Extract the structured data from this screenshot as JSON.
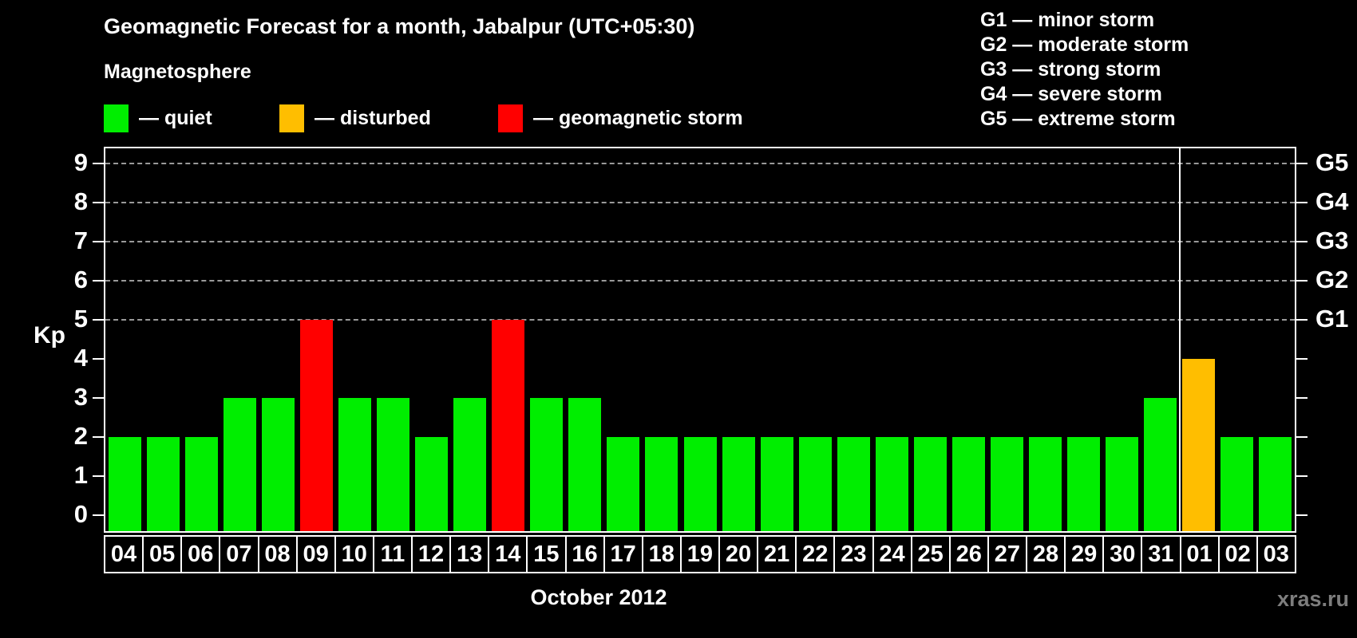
{
  "title": "Geomagnetic Forecast for a month, Jabalpur (UTC+05:30)",
  "subtitle": "Magnetosphere",
  "legend": {
    "quiet": "— quiet",
    "disturbed": "— disturbed",
    "storm": "— geomagnetic storm"
  },
  "g_legend": [
    "G1 — minor storm",
    "G2 — moderate storm",
    "G3 — strong storm",
    "G4 — severe storm",
    "G5 — extreme storm"
  ],
  "y_axis_title": "Kp",
  "x_axis_title": "October 2012",
  "watermark": "xras.ru",
  "colors": {
    "quiet": "#00ee00",
    "disturbed": "#ffbe00",
    "storm": "#ff0000",
    "gridline": "#9a9a9a",
    "axis": "#ffffff",
    "background": "#000000",
    "watermark": "#7d7d7d"
  },
  "chart_data": {
    "type": "bar",
    "title": "Geomagnetic Forecast for a month, Jabalpur (UTC+05:30)",
    "xlabel": "October 2012",
    "ylabel": "Kp",
    "ylim": [
      0,
      9.4
    ],
    "grid": "dashed horizontal at Kp 5-9 only",
    "legend_position": "top",
    "categories": [
      "04",
      "05",
      "06",
      "07",
      "08",
      "09",
      "10",
      "11",
      "12",
      "13",
      "14",
      "15",
      "16",
      "17",
      "18",
      "19",
      "20",
      "21",
      "22",
      "23",
      "24",
      "25",
      "26",
      "27",
      "28",
      "29",
      "30",
      "31",
      "01",
      "02",
      "03"
    ],
    "values": [
      2,
      2,
      2,
      3,
      3,
      5,
      3,
      3,
      2,
      3,
      5,
      3,
      3,
      2,
      2,
      2,
      2,
      2,
      2,
      2,
      2,
      2,
      2,
      2,
      2,
      2,
      2,
      3,
      4,
      2,
      2
    ],
    "statuses": [
      "quiet",
      "quiet",
      "quiet",
      "quiet",
      "quiet",
      "storm",
      "quiet",
      "quiet",
      "quiet",
      "quiet",
      "storm",
      "quiet",
      "quiet",
      "quiet",
      "quiet",
      "quiet",
      "quiet",
      "quiet",
      "quiet",
      "quiet",
      "quiet",
      "quiet",
      "quiet",
      "quiet",
      "quiet",
      "quiet",
      "quiet",
      "quiet",
      "disturbed",
      "quiet",
      "quiet"
    ],
    "y_ticks": [
      0,
      1,
      2,
      3,
      4,
      5,
      6,
      7,
      8,
      9
    ],
    "gridline_levels": [
      5,
      6,
      7,
      8,
      9
    ],
    "right_axis": [
      {
        "kp": 5,
        "label": "G1"
      },
      {
        "kp": 6,
        "label": "G2"
      },
      {
        "kp": 7,
        "label": "G3"
      },
      {
        "kp": 8,
        "label": "G4"
      },
      {
        "kp": 9,
        "label": "G5"
      }
    ],
    "month_separator_before_index": 28
  }
}
